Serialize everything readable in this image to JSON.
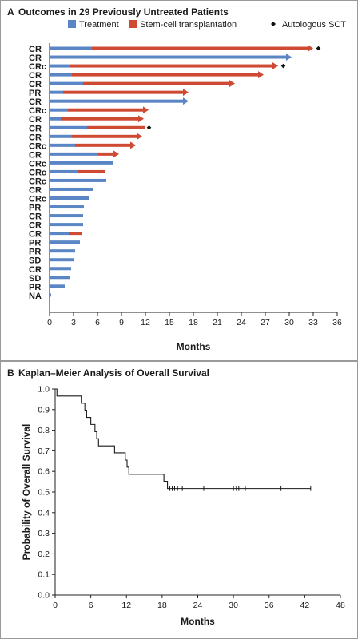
{
  "panel_a": {
    "letter": "A",
    "title": "Outcomes in 29 Previously Untreated Patients",
    "legend": [
      {
        "label": "Treatment",
        "color": "#5b86c5",
        "shape": "square"
      },
      {
        "label": "Stem-cell transplantation",
        "color": "#cf4a33",
        "shape": "square"
      },
      {
        "label": "Autologous SCT",
        "color": "#111111",
        "shape": "diamond"
      }
    ]
  },
  "panel_b": {
    "letter": "B",
    "title": "Kaplan–Meier Analysis of Overall Survival"
  },
  "chart_data": [
    {
      "type": "bar",
      "orientation": "horizontal",
      "title": "Outcomes in 29 Previously Untreated Patients",
      "xlabel": "Months",
      "ylabel": "",
      "xlim": [
        0,
        36
      ],
      "xticks": [
        0,
        3,
        6,
        9,
        12,
        15,
        18,
        21,
        24,
        27,
        30,
        33,
        36
      ],
      "colors": {
        "treatment": "#5b86c5",
        "sct": "#cf4a33",
        "marker": "#111111"
      },
      "patients": [
        {
          "response": "CR",
          "treatment_end": 5.3,
          "total": 33.0,
          "arrow": true,
          "auto_sct": 33.3
        },
        {
          "response": "CR",
          "treatment_end": 30.3,
          "total": 30.3,
          "arrow": true,
          "auto_sct": null
        },
        {
          "response": "CRc",
          "treatment_end": 2.5,
          "total": 28.6,
          "arrow": true,
          "auto_sct": 28.9
        },
        {
          "response": "CR",
          "treatment_end": 2.8,
          "total": 26.8,
          "arrow": true,
          "auto_sct": null
        },
        {
          "response": "CR",
          "treatment_end": 4.2,
          "total": 23.2,
          "arrow": true,
          "auto_sct": null
        },
        {
          "response": "PR",
          "treatment_end": 1.7,
          "total": 17.4,
          "arrow": true,
          "auto_sct": null
        },
        {
          "response": "CR",
          "treatment_end": 17.4,
          "total": 17.4,
          "arrow": true,
          "auto_sct": null
        },
        {
          "response": "CRc",
          "treatment_end": 2.3,
          "total": 12.4,
          "arrow": true,
          "auto_sct": null
        },
        {
          "response": "CR",
          "treatment_end": 1.4,
          "total": 11.8,
          "arrow": true,
          "auto_sct": null
        },
        {
          "response": "CR",
          "treatment_end": 4.7,
          "total": 12.0,
          "arrow": false,
          "auto_sct": 12.1
        },
        {
          "response": "CR",
          "treatment_end": 2.8,
          "total": 11.6,
          "arrow": true,
          "auto_sct": null
        },
        {
          "response": "CRc",
          "treatment_end": 3.2,
          "total": 10.8,
          "arrow": true,
          "auto_sct": null
        },
        {
          "response": "CR",
          "treatment_end": 6.1,
          "total": 8.7,
          "arrow": true,
          "auto_sct": null
        },
        {
          "response": "CRc",
          "treatment_end": 7.9,
          "total": 7.9,
          "arrow": false,
          "auto_sct": null
        },
        {
          "response": "CRc",
          "treatment_end": 3.5,
          "total": 7.0,
          "arrow": false,
          "auto_sct": null
        },
        {
          "response": "CRc",
          "treatment_end": 7.1,
          "total": 7.1,
          "arrow": false,
          "auto_sct": null
        },
        {
          "response": "CR",
          "treatment_end": 5.5,
          "total": 5.5,
          "arrow": false,
          "auto_sct": null
        },
        {
          "response": "CRc",
          "treatment_end": 4.9,
          "total": 4.9,
          "arrow": false,
          "auto_sct": null
        },
        {
          "response": "PR",
          "treatment_end": 4.3,
          "total": 4.3,
          "arrow": false,
          "auto_sct": null
        },
        {
          "response": "CR",
          "treatment_end": 4.2,
          "total": 4.2,
          "arrow": false,
          "auto_sct": null
        },
        {
          "response": "CR",
          "treatment_end": 4.2,
          "total": 4.2,
          "arrow": false,
          "auto_sct": null
        },
        {
          "response": "CR",
          "treatment_end": 2.4,
          "total": 4.0,
          "arrow": false,
          "auto_sct": null
        },
        {
          "response": "PR",
          "treatment_end": 3.8,
          "total": 3.8,
          "arrow": false,
          "auto_sct": null
        },
        {
          "response": "PR",
          "treatment_end": 3.2,
          "total": 3.2,
          "arrow": false,
          "auto_sct": null
        },
        {
          "response": "SD",
          "treatment_end": 3.0,
          "total": 3.0,
          "arrow": false,
          "auto_sct": null
        },
        {
          "response": "CR",
          "treatment_end": 2.7,
          "total": 2.7,
          "arrow": false,
          "auto_sct": null
        },
        {
          "response": "SD",
          "treatment_end": 2.6,
          "total": 2.6,
          "arrow": false,
          "auto_sct": null
        },
        {
          "response": "PR",
          "treatment_end": 1.9,
          "total": 1.9,
          "arrow": false,
          "auto_sct": null
        },
        {
          "response": "NA",
          "treatment_end": 0.2,
          "total": 0.2,
          "arrow": false,
          "auto_sct": null
        }
      ]
    },
    {
      "type": "line",
      "subtype": "kaplan-meier step",
      "title": "Kaplan–Meier Analysis of Overall Survival",
      "xlabel": "Months",
      "ylabel": "Probability of Overall Survival",
      "xlim": [
        0,
        48
      ],
      "ylim": [
        0,
        1.0
      ],
      "xticks": [
        0,
        6,
        12,
        18,
        24,
        30,
        36,
        42,
        48
      ],
      "yticks": [
        0.0,
        0.1,
        0.2,
        0.3,
        0.4,
        0.5,
        0.6,
        0.7,
        0.8,
        0.9,
        1.0
      ],
      "steps": [
        {
          "x": 0.0,
          "y": 1.0
        },
        {
          "x": 0.3,
          "y": 0.966
        },
        {
          "x": 4.4,
          "y": 0.931
        },
        {
          "x": 5.0,
          "y": 0.897
        },
        {
          "x": 5.3,
          "y": 0.862
        },
        {
          "x": 6.0,
          "y": 0.828
        },
        {
          "x": 6.7,
          "y": 0.793
        },
        {
          "x": 7.0,
          "y": 0.759
        },
        {
          "x": 7.3,
          "y": 0.724
        },
        {
          "x": 10.0,
          "y": 0.69
        },
        {
          "x": 11.8,
          "y": 0.655
        },
        {
          "x": 12.1,
          "y": 0.621
        },
        {
          "x": 12.4,
          "y": 0.586
        },
        {
          "x": 18.3,
          "y": 0.552
        },
        {
          "x": 18.9,
          "y": 0.517
        }
      ],
      "end_x": 43.0,
      "censored": [
        19.3,
        19.7,
        20.1,
        20.6,
        21.4,
        25.0,
        30.0,
        30.5,
        30.9,
        32.0,
        38.0,
        43.0
      ]
    }
  ]
}
